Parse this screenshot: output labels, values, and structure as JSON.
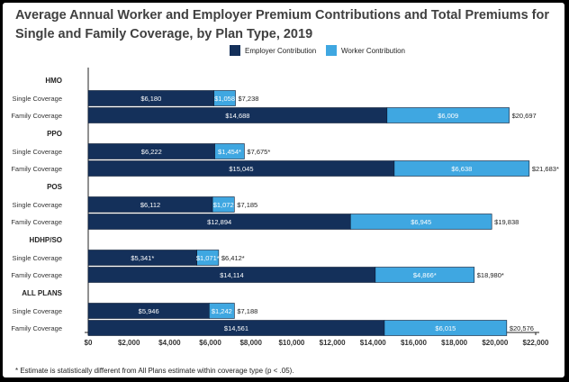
{
  "chart_data": {
    "type": "bar",
    "orientation": "horizontal",
    "stacked": true,
    "title": "Average Annual Worker and Employer Premium Contributions and Total Premiums for Single and Family Coverage, by Plan Type, 2019",
    "legend_position": "top-right",
    "series": [
      {
        "name": "Employer Contribution",
        "color": "#14305a"
      },
      {
        "name": "Worker Contribution",
        "color": "#3fa7e1"
      }
    ],
    "xlim": [
      0,
      22000
    ],
    "x_ticks": [
      {
        "value": 0,
        "label": "$0"
      },
      {
        "value": 2000,
        "label": "$2,000"
      },
      {
        "value": 4000,
        "label": "$4,000"
      },
      {
        "value": 6000,
        "label": "$6,000"
      },
      {
        "value": 8000,
        "label": "$8,000"
      },
      {
        "value": 10000,
        "label": "$10,000"
      },
      {
        "value": 12000,
        "label": "$12,000"
      },
      {
        "value": 14000,
        "label": "$14,000"
      },
      {
        "value": 16000,
        "label": "$16,000"
      },
      {
        "value": 18000,
        "label": "$18,000"
      },
      {
        "value": 20000,
        "label": "$20,000"
      },
      {
        "value": 22000,
        "label": "$22,000"
      }
    ],
    "groups": [
      {
        "name": "HMO",
        "rows": [
          {
            "label": "Single Coverage",
            "employer": 6180,
            "worker": 1058,
            "total": 7238,
            "employer_label": "$6,180",
            "worker_label": "$1,058",
            "total_label": "$7,238"
          },
          {
            "label": "Family Coverage",
            "employer": 14688,
            "worker": 6009,
            "total": 20697,
            "employer_label": "$14,688",
            "worker_label": "$6,009",
            "total_label": "$20,697"
          }
        ]
      },
      {
        "name": "PPO",
        "rows": [
          {
            "label": "Single Coverage",
            "employer": 6222,
            "worker": 1454,
            "total": 7675,
            "employer_label": "$6,222",
            "worker_label": "$1,454*",
            "total_label": "$7,675*"
          },
          {
            "label": "Family Coverage",
            "employer": 15045,
            "worker": 6638,
            "total": 21683,
            "employer_label": "$15,045",
            "worker_label": "$6,638",
            "total_label": "$21,683*"
          }
        ]
      },
      {
        "name": "POS",
        "rows": [
          {
            "label": "Single Coverage",
            "employer": 6112,
            "worker": 1072,
            "total": 7185,
            "employer_label": "$6,112",
            "worker_label": "$1,072",
            "total_label": "$7,185"
          },
          {
            "label": "Family Coverage",
            "employer": 12894,
            "worker": 6945,
            "total": 19838,
            "employer_label": "$12,894",
            "worker_label": "$6,945",
            "total_label": "$19,838"
          }
        ]
      },
      {
        "name": "HDHP/SO",
        "rows": [
          {
            "label": "Single Coverage",
            "employer": 5341,
            "worker": 1071,
            "total": 6412,
            "employer_label": "$5,341*",
            "worker_label": "$1,071*",
            "total_label": "$6,412*"
          },
          {
            "label": "Family Coverage",
            "employer": 14114,
            "worker": 4866,
            "total": 18980,
            "employer_label": "$14,114",
            "worker_label": "$4,866*",
            "total_label": "$18,980*"
          }
        ]
      },
      {
        "name": "ALL PLANS",
        "rows": [
          {
            "label": "Single Coverage",
            "employer": 5946,
            "worker": 1242,
            "total": 7188,
            "employer_label": "$5,946",
            "worker_label": "$1,242",
            "total_label": "$7,188"
          },
          {
            "label": "Family Coverage",
            "employer": 14561,
            "worker": 6015,
            "total": 20576,
            "employer_label": "$14,561",
            "worker_label": "$6,015",
            "total_label": "$20,576"
          }
        ]
      }
    ],
    "footnote": "* Estimate is statistically different from All Plans estimate within coverage type (p < .05)."
  }
}
